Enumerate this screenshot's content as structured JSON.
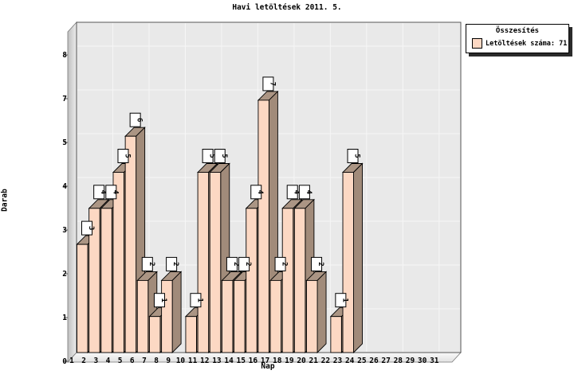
{
  "title": "Havi letöltések 2011. 5.",
  "y_axis": {
    "label": "Darab",
    "tick_labels_top_to_bottom": [
      "8",
      "7",
      "5",
      "4",
      "3",
      "2",
      "1",
      "0"
    ]
  },
  "x_axis": {
    "label": "Nap"
  },
  "legend": {
    "title": "Összesítés",
    "entry": "Letöltések száma: 71",
    "swatch_color": "#fcd8c3"
  },
  "colors": {
    "bar_front": "#fcd8c3",
    "bar_top": "#ab9584",
    "bar_side": "#a18b7a",
    "bar_outline": "#000000",
    "panel_background": "#e9e9e9",
    "gridline": "#f6f6f6",
    "plot_border": "#555555",
    "text": "#000000",
    "legend_shadow": "#2b2b2b"
  },
  "chart_data": {
    "type": "bar",
    "title": "Havi letöltések 2011. 5.",
    "xlabel": "Nap",
    "ylabel": "Darab",
    "categories": [
      1,
      2,
      3,
      4,
      5,
      6,
      7,
      8,
      9,
      10,
      11,
      12,
      13,
      14,
      15,
      16,
      17,
      18,
      19,
      20,
      21,
      22,
      23,
      24,
      25,
      26,
      27,
      28,
      29,
      30,
      31
    ],
    "values": [
      3,
      4,
      4,
      5,
      6,
      2,
      1,
      2,
      0,
      1,
      5,
      5,
      2,
      2,
      4,
      7,
      2,
      4,
      4,
      2,
      0,
      1,
      5,
      0,
      0,
      0,
      0,
      0,
      0,
      0,
      0
    ],
    "bar_value_labels_shown": true,
    "total_downloads": 71,
    "ylim": [
      0,
      8
    ],
    "y_tick_labels_bottom_to_top": [
      "0",
      "1",
      "2",
      "3",
      "4",
      "5",
      "7",
      "8"
    ],
    "grid": true,
    "style": "3d-bars",
    "legend_position": "top-right"
  }
}
